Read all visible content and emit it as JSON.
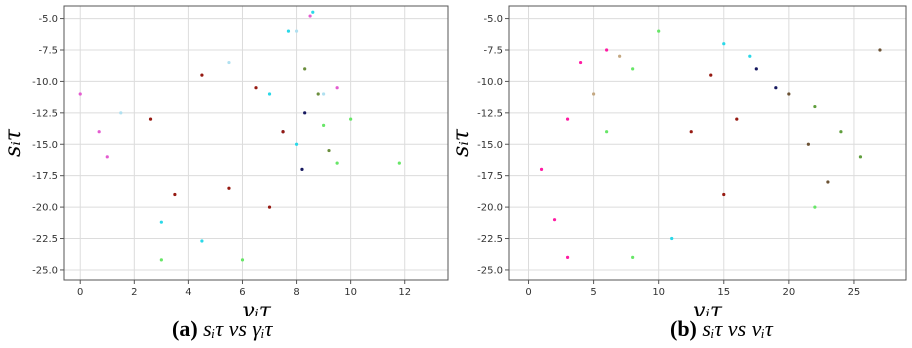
{
  "chart_data": [
    {
      "type": "scatter",
      "caption": {
        "tag": "(a)",
        "expr": "sᵢτ vs γᵢτ"
      },
      "xlabel": "γᵢτ",
      "ylabel": "sᵢτ",
      "xlim": [
        -0.6,
        13.6
      ],
      "ylim": [
        -25.8,
        -4.0
      ],
      "xticks": [
        0,
        2,
        4,
        6,
        8,
        10,
        12
      ],
      "yticks": [
        -5.0,
        -7.5,
        -10.0,
        -12.5,
        -15.0,
        -17.5,
        -20.0,
        -22.5,
        -25.0
      ],
      "grid": true,
      "series": [
        {
          "color": "#b0e0f0",
          "values": [
            [
              1.5,
              -12.5
            ],
            [
              5.5,
              -8.5
            ],
            [
              8.0,
              -6.0
            ],
            [
              9.0,
              -11.0
            ]
          ]
        },
        {
          "color": "#e45bd0",
          "values": [
            [
              0.0,
              -11.0
            ],
            [
              0.7,
              -14.0
            ],
            [
              1.0,
              -16.0
            ],
            [
              8.5,
              -4.8
            ],
            [
              9.5,
              -10.5
            ]
          ]
        },
        {
          "color": "#67e667",
          "values": [
            [
              3.0,
              -24.2
            ],
            [
              6.0,
              -24.2
            ],
            [
              9.0,
              -13.5
            ],
            [
              9.5,
              -16.5
            ],
            [
              10.0,
              -13.0
            ],
            [
              11.8,
              -16.5
            ]
          ]
        },
        {
          "color": "#2ad8e8",
          "values": [
            [
              3.0,
              -21.2
            ],
            [
              4.5,
              -22.7
            ],
            [
              7.0,
              -11.0
            ],
            [
              7.7,
              -6.0
            ],
            [
              8.0,
              -15.0
            ],
            [
              8.6,
              -4.5
            ]
          ]
        },
        {
          "color": "#16185f",
          "values": [
            [
              7.5,
              -14.0
            ],
            [
              8.2,
              -17.0
            ],
            [
              8.3,
              -12.5
            ]
          ]
        },
        {
          "color": "#6b8e3d",
          "values": [
            [
              8.3,
              -9.0
            ],
            [
              8.8,
              -11.0
            ],
            [
              9.2,
              -15.5
            ]
          ]
        },
        {
          "color": "#961a12",
          "values": [
            [
              2.6,
              -13.0
            ],
            [
              3.5,
              -19.0
            ],
            [
              4.5,
              -9.5
            ],
            [
              5.5,
              -18.5
            ],
            [
              6.5,
              -10.5
            ],
            [
              7.0,
              -20.0
            ],
            [
              7.5,
              -14.0
            ]
          ]
        }
      ]
    },
    {
      "type": "scatter",
      "caption": {
        "tag": "(b)",
        "expr": "sᵢτ vs vᵢτ"
      },
      "xlabel": "vᵢτ",
      "ylabel": "sᵢτ",
      "xlim": [
        -1.5,
        29.0
      ],
      "ylim": [
        -25.8,
        -4.0
      ],
      "xticks": [
        0,
        5,
        10,
        15,
        20,
        25
      ],
      "yticks": [
        -5.0,
        -7.5,
        -10.0,
        -12.5,
        -15.0,
        -17.5,
        -20.0,
        -22.5,
        -25.0
      ],
      "grid": true,
      "series": [
        {
          "color": "#ff1aa3",
          "values": [
            [
              1.0,
              -17.0
            ],
            [
              2.0,
              -21.0
            ],
            [
              3.0,
              -13.0
            ],
            [
              4.0,
              -8.5
            ],
            [
              6.0,
              -7.5
            ],
            [
              3.0,
              -24.0
            ]
          ]
        },
        {
          "color": "#c4a882",
          "values": [
            [
              5.0,
              -11.0
            ],
            [
              7.0,
              -8.0
            ]
          ]
        },
        {
          "color": "#67e667",
          "values": [
            [
              6.0,
              -14.0
            ],
            [
              8.0,
              -9.0
            ],
            [
              10.0,
              -6.0
            ],
            [
              8.0,
              -24.0
            ],
            [
              22.0,
              -20.0
            ]
          ]
        },
        {
          "color": "#2ad8e8",
          "values": [
            [
              11.0,
              -22.5
            ],
            [
              15.0,
              -7.0
            ],
            [
              17.0,
              -8.0
            ]
          ]
        },
        {
          "color": "#16185f",
          "values": [
            [
              17.5,
              -9.0
            ],
            [
              19.0,
              -10.5
            ]
          ]
        },
        {
          "color": "#6b5234",
          "values": [
            [
              20.0,
              -11.0
            ],
            [
              21.5,
              -15.0
            ],
            [
              23.0,
              -18.0
            ],
            [
              27.0,
              -7.5
            ]
          ]
        },
        {
          "color": "#5f9e3c",
          "values": [
            [
              22.0,
              -12.0
            ],
            [
              24.0,
              -14.0
            ],
            [
              25.5,
              -16.0
            ]
          ]
        },
        {
          "color": "#961a12",
          "values": [
            [
              12.5,
              -14.0
            ],
            [
              14.0,
              -9.5
            ],
            [
              15.0,
              -19.0
            ],
            [
              16.0,
              -13.0
            ]
          ]
        }
      ]
    }
  ]
}
